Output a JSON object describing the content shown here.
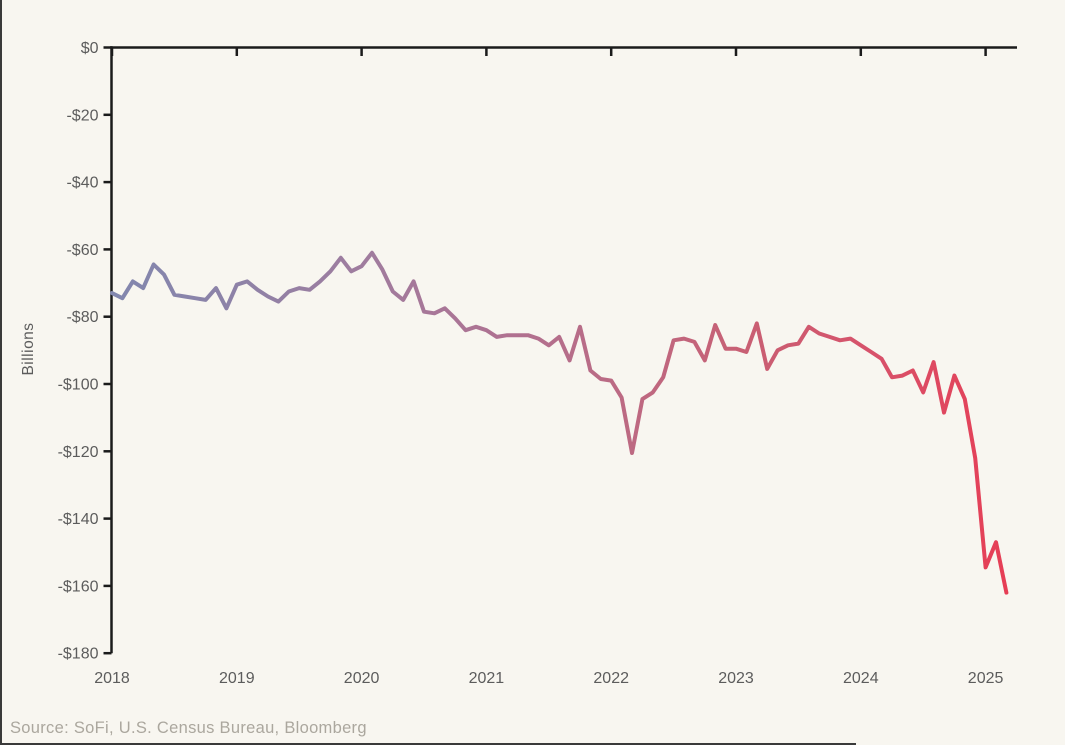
{
  "chart_data": {
    "type": "line",
    "title": "",
    "ylabel": "Billions",
    "x_start": "2018-01",
    "x_frequency": "monthly",
    "x_tick_labels": [
      "2018",
      "2019",
      "2020",
      "2021",
      "2022",
      "2023",
      "2024",
      "2025"
    ],
    "y_tick_labels": [
      "$0",
      "-$20",
      "-$40",
      "-$60",
      "-$80",
      "-$100",
      "-$120",
      "-$140",
      "-$160",
      "-$180"
    ],
    "ylim": [
      -180,
      0
    ],
    "grid": false,
    "legend": false,
    "values": [
      -73,
      -74.5,
      -69.5,
      -71.5,
      -64.5,
      -67.5,
      -73.5,
      -74,
      -74.5,
      -75,
      -71.5,
      -77.5,
      -70.5,
      -69.5,
      -72,
      -74,
      -75.5,
      -72.5,
      -71.5,
      -72,
      -69.5,
      -66.5,
      -62.5,
      -66.5,
      -65,
      -61,
      -66,
      -72.5,
      -75,
      -69.5,
      -78.5,
      -79,
      -77.5,
      -80.5,
      -84,
      -83,
      -84,
      -86,
      -85.5,
      -85.5,
      -85.5,
      -86.5,
      -88.5,
      -86,
      -93,
      -83,
      -96,
      -98.5,
      -99,
      -104,
      -120.5,
      -104.5,
      -102.5,
      -98,
      -87,
      -86.5,
      -87.5,
      -93,
      -82.5,
      -89.5,
      -89.5,
      -90.5,
      -82,
      -95.5,
      -90,
      -88.5,
      -88,
      -83,
      -85,
      -86,
      -87,
      -86.5,
      -88.5,
      -90.5,
      -92.5,
      -98,
      -97.5,
      -96,
      -102.5,
      -93.5,
      -108.5,
      -97.5,
      -104.5,
      -122,
      -154.5,
      -147,
      -162
    ],
    "line_gradient": [
      "#8287AE",
      "#8E82A7",
      "#A07C9E",
      "#AE7292",
      "#BC6A83",
      "#C95F73",
      "#D8516A",
      "#E63E55"
    ]
  },
  "source_note": "Source: SoFi, U.S. Census Bureau, Bloomberg",
  "colors": {
    "background": "#F8F6F0",
    "axis": "#1B1B1B",
    "tick_label": "#5C5C5C",
    "source_text": "#ABA79E",
    "window_edge": "#3A3A3A"
  }
}
